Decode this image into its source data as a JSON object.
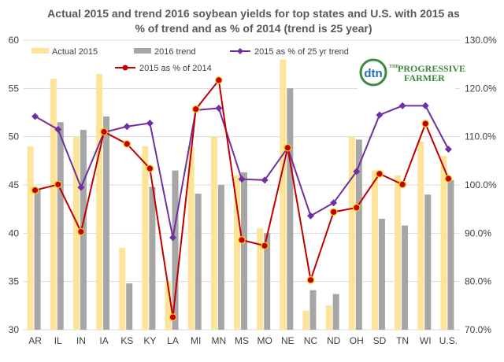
{
  "chart_data": {
    "type": "bar",
    "title_lines": [
      "Actual 2015 and trend 2016 soybean yields for top states and U.S. with 2015 as",
      "% of trend and as % of 2014 (trend is 25 year)"
    ],
    "categories": [
      "AR",
      "IL",
      "IN",
      "IA",
      "KS",
      "KY",
      "LA",
      "MI",
      "MN",
      "MS",
      "MO",
      "NE",
      "NC",
      "ND",
      "OH",
      "SD",
      "TN",
      "WI",
      "U.S."
    ],
    "ylim": [
      30,
      60
    ],
    "y_ticks": [
      "30",
      "35",
      "40",
      "45",
      "50",
      "55",
      "60"
    ],
    "y2lim": [
      70,
      130
    ],
    "y2_ticks": [
      "70.0%",
      "80.0%",
      "90.0%",
      "100.0%",
      "110.0%",
      "120.0%",
      "130.0%"
    ],
    "grid": true,
    "legend_placement": "top",
    "bar_series": [
      {
        "name": "Actual 2015",
        "color": "#fde499",
        "values": [
          49,
          56,
          50,
          56.5,
          38.5,
          49,
          35,
          49,
          50,
          46,
          40.5,
          58,
          32,
          32.5,
          50,
          46.5,
          46,
          49.5,
          48
        ]
      },
      {
        "name": "2016 trend",
        "color": "#a6a6a6",
        "values": [
          44.5,
          51.5,
          50.7,
          52.1,
          34.8,
          44.8,
          46.5,
          44.1,
          45,
          46.3,
          40,
          55,
          34.1,
          33.7,
          49.7,
          41.5,
          40.8,
          44,
          45.5
        ]
      }
    ],
    "line_series": [
      {
        "name": "2015 as % of 25 yr trend",
        "color": "#7030a0",
        "marker": "diamond",
        "values": [
          114.2,
          111.5,
          99.5,
          110.9,
          112.1,
          112.8,
          89.1,
          115.5,
          115.9,
          101.2,
          101.0,
          107.7,
          93.6,
          96.3,
          102.8,
          114.5,
          116.4,
          116.4,
          107.4
        ]
      },
      {
        "name": "2015 as % of 2014",
        "color": "#c00000",
        "marker": "circle",
        "values": [
          98.9,
          100.1,
          90.3,
          111.0,
          108.5,
          103.4,
          72.6,
          115.7,
          121.7,
          88.6,
          87.4,
          107.7,
          80.3,
          94.4,
          95.3,
          102.3,
          100.1,
          112.7,
          101.3
        ]
      }
    ]
  },
  "logo": {
    "circle_text": "dtn",
    "line1": "THE",
    "line2": "PROGRESSIVE",
    "line3": "FARMER"
  }
}
